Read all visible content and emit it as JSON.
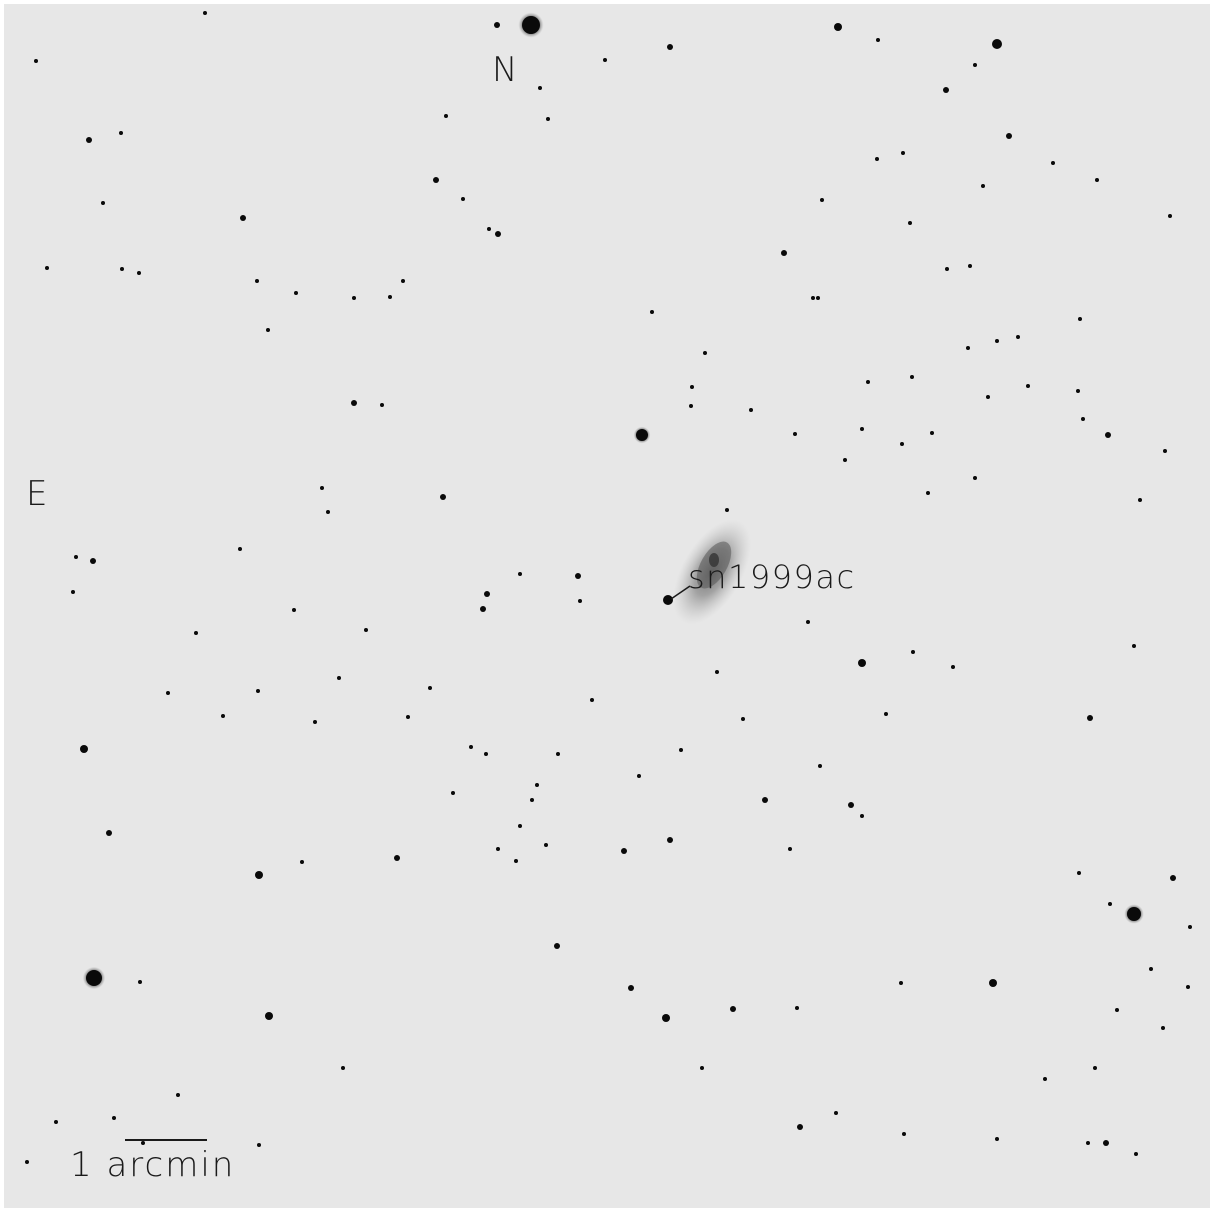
{
  "image": {
    "type": "astronomical field, inverted greyscale",
    "background_color": "#e7e7e7",
    "star_color": "#0a0a0a"
  },
  "labels": {
    "north": "N",
    "east": "E",
    "supernova": "sn1999ac",
    "scale": "1 arcmin"
  }
}
